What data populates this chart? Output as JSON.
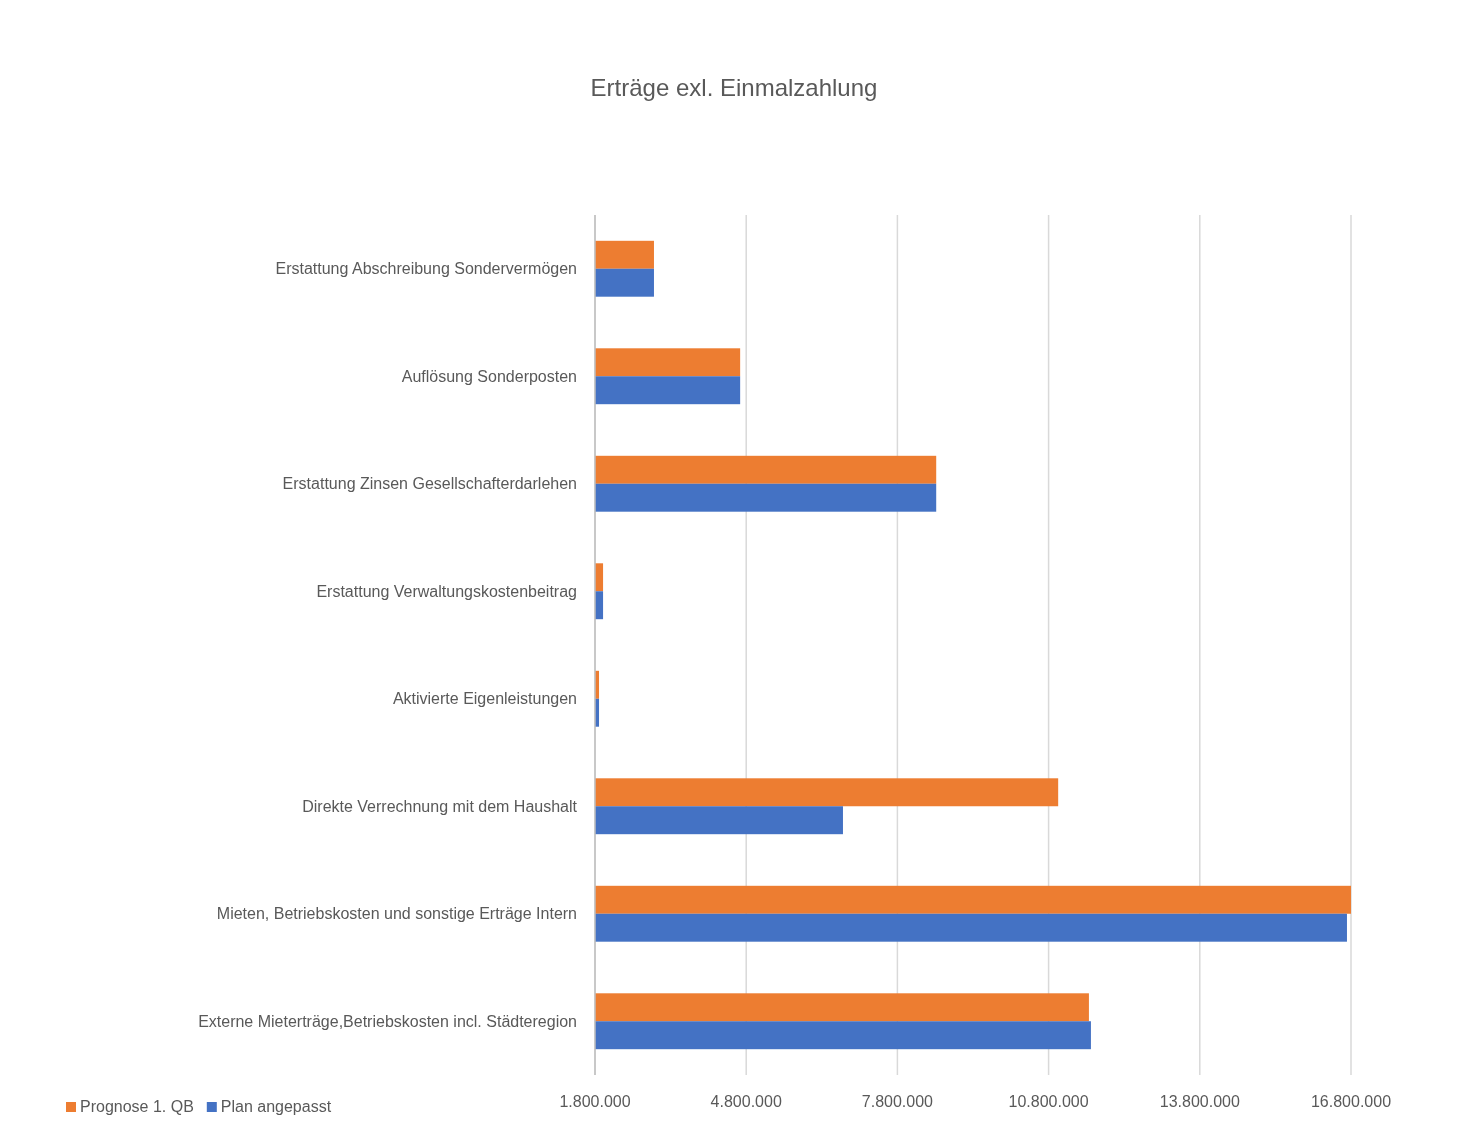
{
  "chart_data": {
    "type": "bar",
    "orientation": "horizontal",
    "title": "Erträge exl. Einmalzahlung",
    "categories": [
      "Erstattung Abschreibung Sondervermögen",
      "Auflösung Sonderposten",
      "Erstattung Zinsen Gesellschafterdarlehen",
      "Erstattung Verwaltungskostenbeitrag",
      "Aktivierte Eigenleistungen",
      "Direkte Verrechnung mit dem Haushalt",
      "Mieten, Betriebskosten und sonstige Erträge Intern",
      "Externe Mieterträge,Betriebskosten incl. Städteregion"
    ],
    "series": [
      {
        "name": "Prognose 1. QB",
        "color": "#ed7d31",
        "values": [
          2970000,
          4680000,
          8570000,
          1960000,
          1880000,
          10990000,
          16800000,
          11600000
        ]
      },
      {
        "name": "Plan angepasst",
        "color": "#4472c4",
        "values": [
          2970000,
          4680000,
          8570000,
          1960000,
          1880000,
          6720000,
          16720000,
          11640000
        ]
      }
    ],
    "xlim": [
      1800000,
      16800000
    ],
    "xticks": [
      {
        "value": 1800000,
        "label": "1.800.000"
      },
      {
        "value": 4800000,
        "label": "4.800.000"
      },
      {
        "value": 7800000,
        "label": "7.800.000"
      },
      {
        "value": 10800000,
        "label": "10.800.000"
      },
      {
        "value": 13800000,
        "label": "13.800.000"
      },
      {
        "value": 16800000,
        "label": "16.800.000"
      }
    ],
    "grid": "x",
    "legend": "bottom"
  }
}
